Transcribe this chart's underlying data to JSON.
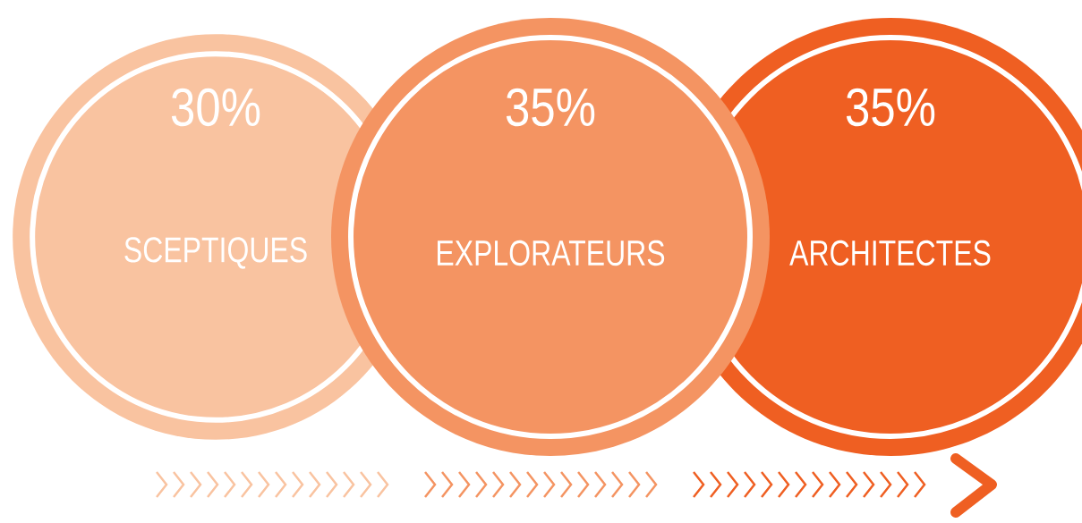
{
  "chart_data": {
    "type": "other",
    "categories": [
      "SCEPTIQUES",
      "EXPLORATEURS",
      "ARCHITECTES"
    ],
    "values": [
      30,
      35,
      35
    ],
    "value_labels": [
      "30%",
      "35%",
      "35%"
    ],
    "colors": [
      "#f9c3a0",
      "#f49462",
      "#ef5f22"
    ]
  }
}
